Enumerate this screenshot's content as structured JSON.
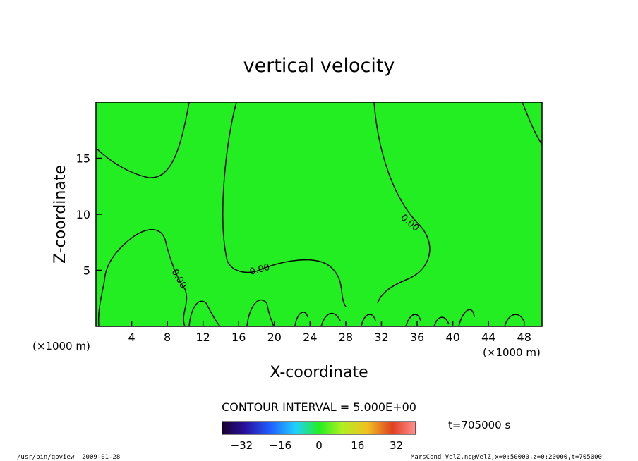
{
  "chart_data": {
    "type": "heatmap",
    "title": "vertical velocity",
    "xlabel": "X-coordinate",
    "ylabel": "Z-coordinate",
    "x_unit": "(×1000 m)",
    "z_unit": "(×1000 m)",
    "x_ticks": [
      4,
      8,
      12,
      16,
      20,
      24,
      28,
      32,
      36,
      40,
      44,
      48
    ],
    "y_ticks": [
      5,
      10,
      15
    ],
    "xlim": [
      0,
      50
    ],
    "ylim": [
      0,
      20
    ],
    "contour_interval_text": "CONTOUR INTERVAL = 5.000E+00",
    "contour_labels": [
      "0.00",
      "0.00",
      "0.00"
    ],
    "time_text": "t=705000 s",
    "colorbar_ticks": [
      "−32",
      "−16",
      "0",
      "16",
      "32"
    ],
    "colorbar_range": [
      -40,
      40
    ],
    "field_color": "#22ee22",
    "contour_color": "#000000"
  },
  "footer": {
    "left": "/usr/bin/gpview  2009-01-28",
    "right": "MarsCond_VelZ.nc@VelZ,x=0:50000,z=0:20000,t=705000"
  }
}
